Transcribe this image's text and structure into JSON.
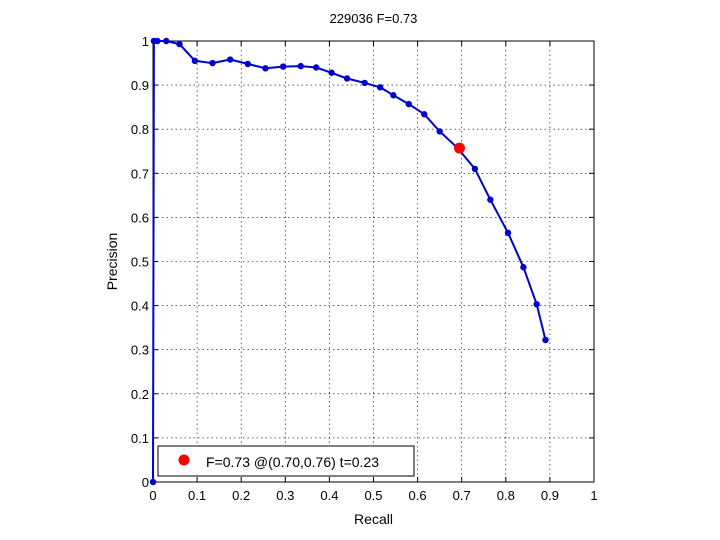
{
  "chart_data": {
    "type": "line",
    "title": "229036 F=0.73",
    "xlabel": "Recall",
    "ylabel": "Precision",
    "xlim": [
      0,
      1
    ],
    "ylim": [
      0,
      1
    ],
    "xticks": [
      0,
      0.1,
      0.2,
      0.3,
      0.4,
      0.5,
      0.6,
      0.7,
      0.8,
      0.9,
      1
    ],
    "yticks": [
      0,
      0.1,
      0.2,
      0.3,
      0.4,
      0.5,
      0.6,
      0.7,
      0.8,
      0.9,
      1
    ],
    "grid": true,
    "legend_position": "bottom-left",
    "series": [
      {
        "color": "#0000cc",
        "x": [
          0,
          0.002,
          0.01,
          0.03,
          0.06,
          0.095,
          0.135,
          0.175,
          0.215,
          0.255,
          0.295,
          0.335,
          0.37,
          0.405,
          0.44,
          0.48,
          0.515,
          0.545,
          0.58,
          0.615,
          0.65,
          0.69,
          0.73,
          0.765,
          0.805,
          0.84,
          0.87,
          0.89
        ],
        "y": [
          0,
          1.0,
          1.0,
          1.0,
          0.993,
          0.955,
          0.95,
          0.958,
          0.948,
          0.938,
          0.942,
          0.943,
          0.94,
          0.928,
          0.915,
          0.905,
          0.895,
          0.877,
          0.857,
          0.834,
          0.795,
          0.758,
          0.71,
          0.64,
          0.565,
          0.487,
          0.403,
          0.322
        ]
      },
      {
        "name": "F=0.73 @(0.70,0.76) t=0.23",
        "color": "#ff0000",
        "x": [
          0.695
        ],
        "y": [
          0.757
        ]
      }
    ]
  }
}
